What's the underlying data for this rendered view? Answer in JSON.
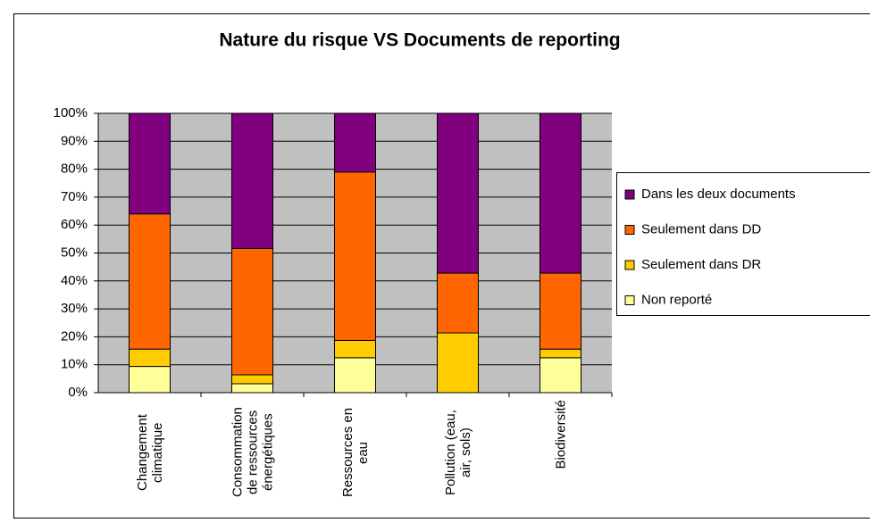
{
  "chart_data": {
    "type": "stacked_bar",
    "title": "Nature du risque VS Documents de reporting",
    "categories": [
      "Changement climatique",
      "Consommation de ressources énergétiques",
      "Ressources en eau",
      "Pollution (eau, air, sols)",
      "Biodiversité"
    ],
    "series": [
      {
        "name": "Non reporté",
        "color": "#ffff99",
        "values": [
          9.4,
          3.2,
          12.5,
          0,
          12.5
        ]
      },
      {
        "name": "Seulement dans DR",
        "color": "#ffcc00",
        "values": [
          6.2,
          3.2,
          6.2,
          21.4,
          3.1
        ]
      },
      {
        "name": "Seulement dans DD",
        "color": "#ff6600",
        "values": [
          48.4,
          45.2,
          60.3,
          21.4,
          27.2
        ]
      },
      {
        "name": "Dans les deux documents",
        "color": "#800080",
        "values": [
          36,
          48.4,
          21,
          57.2,
          57.2
        ]
      }
    ],
    "ylim": [
      0,
      100
    ],
    "yticks": [
      {
        "value": 0,
        "label": "0%"
      },
      {
        "value": 10,
        "label": "10%"
      },
      {
        "value": 20,
        "label": "20%"
      },
      {
        "value": 30,
        "label": "30%"
      },
      {
        "value": 40,
        "label": "40%"
      },
      {
        "value": 50,
        "label": "50%"
      },
      {
        "value": 60,
        "label": "60%"
      },
      {
        "value": 70,
        "label": "70%"
      },
      {
        "value": 80,
        "label": "80%"
      },
      {
        "value": 90,
        "label": "90%"
      },
      {
        "value": 100,
        "label": "100%"
      }
    ],
    "grid": true,
    "plot_background": "#c0c0c0",
    "legend": "right"
  }
}
